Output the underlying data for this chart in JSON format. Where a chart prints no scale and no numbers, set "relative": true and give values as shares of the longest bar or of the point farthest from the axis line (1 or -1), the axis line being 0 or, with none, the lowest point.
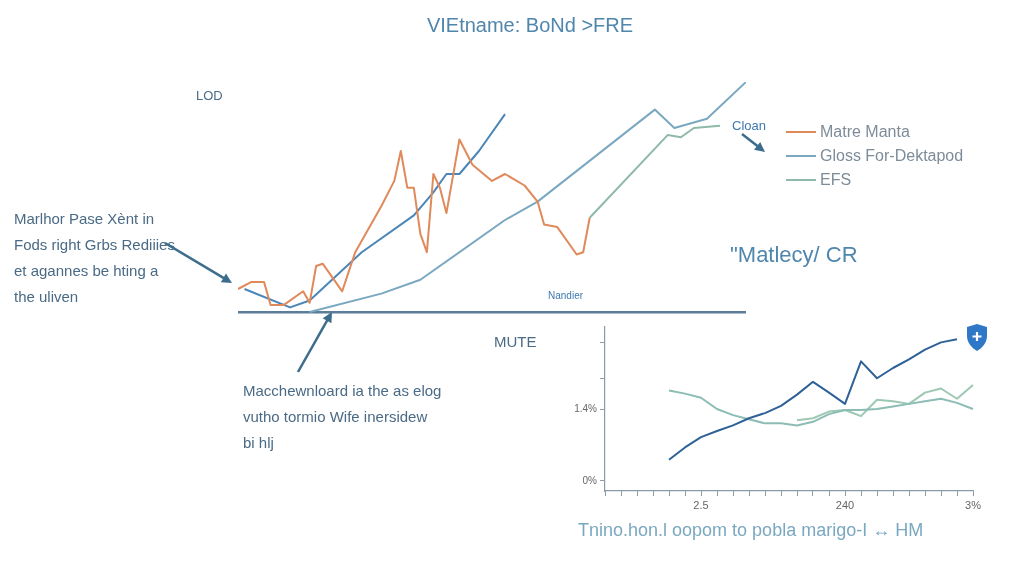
{
  "chart_data": [
    {
      "type": "line",
      "title": "VIEtname: BoNd >FRE",
      "ylabel": "LOD",
      "xlabel": "MUTE",
      "relative": true,
      "marker": "none",
      "legend": "right",
      "annotations": [
        "Marlhor Pase Xènt in Fods right Grbs Rediiies et agannes be hting a the uliven",
        "Macchewnloard ia the as elog vutho tormio Wife inersidew bi hlj",
        "Nandier",
        "Cloan"
      ],
      "categories": [
        null,
        null,
        null,
        null,
        null,
        null,
        null,
        null,
        null,
        null,
        null,
        null,
        null,
        null,
        null,
        null,
        null,
        null,
        null,
        null,
        null,
        null,
        null,
        null,
        null,
        null,
        null,
        null,
        null,
        null,
        null,
        null,
        null,
        null,
        null,
        null,
        null,
        null,
        null,
        null,
        null,
        null,
        null,
        null,
        null,
        null,
        null,
        null,
        null,
        null,
        null,
        null,
        null,
        null,
        null,
        null,
        null,
        null,
        null,
        null,
        null,
        null,
        null,
        null,
        null,
        null,
        null,
        null,
        null,
        null,
        null,
        null,
        null,
        null,
        null,
        null,
        null,
        null,
        null
      ],
      "series": [
        {
          "name": "Matre Manta",
          "color": "#e0895a",
          "values": [
            0.1,
            null,
            0.13,
            null,
            0.13,
            0.03,
            null,
            0.03,
            null,
            null,
            0.09,
            0.04,
            0.2,
            0.21,
            null,
            null,
            0.09,
            null,
            0.26,
            null,
            null,
            null,
            0.46,
            null,
            0.57,
            0.7,
            0.54,
            0.54,
            0.34,
            0.26,
            0.6,
            0.54,
            0.43,
            0.59,
            0.75,
            null,
            0.64,
            null,
            null,
            0.57,
            null,
            0.6,
            null,
            null,
            0.55,
            null,
            0.48,
            0.38,
            null,
            0.37,
            null,
            null,
            0.25,
            0.26,
            0.41,
            null,
            null,
            null,
            null,
            null,
            null,
            null,
            null,
            null,
            null,
            null,
            null,
            null,
            null,
            null,
            null,
            null,
            null,
            null,
            null,
            null,
            null,
            null,
            null
          ]
        },
        {
          "name": "Gloss For-Dektapod",
          "color": "#7aa8c0",
          "values": [
            null,
            null,
            null,
            null,
            null,
            null,
            null,
            null,
            null,
            null,
            null,
            0,
            null,
            null,
            null,
            null,
            null,
            null,
            null,
            null,
            null,
            null,
            0.08,
            null,
            null,
            null,
            null,
            null,
            0.14,
            null,
            null,
            null,
            null,
            null,
            null,
            null,
            null,
            null,
            null,
            null,
            null,
            0.4,
            null,
            null,
            null,
            null,
            0.48,
            null,
            null,
            null,
            null,
            null,
            null,
            null,
            null,
            null,
            null,
            null,
            null,
            null,
            null,
            null,
            null,
            null,
            0.88,
            null,
            null,
            0.8,
            null,
            null,
            null,
            null,
            0.84,
            null,
            null,
            null,
            null,
            null,
            1.0
          ]
        },
        {
          "name": "EFS",
          "color": "#8fb9a8",
          "values": [
            null,
            null,
            null,
            null,
            null,
            null,
            null,
            null,
            null,
            null,
            null,
            null,
            null,
            null,
            null,
            null,
            null,
            null,
            null,
            null,
            null,
            null,
            null,
            null,
            null,
            null,
            null,
            null,
            null,
            null,
            null,
            null,
            null,
            null,
            null,
            null,
            null,
            null,
            null,
            null,
            null,
            null,
            null,
            null,
            null,
            null,
            null,
            null,
            null,
            null,
            null,
            null,
            null,
            null,
            0.41,
            null,
            null,
            null,
            null,
            null,
            null,
            null,
            null,
            null,
            null,
            null,
            0.77,
            null,
            0.76,
            null,
            0.8,
            null,
            null,
            null,
            0.81,
            null,
            null,
            null,
            null
          ]
        },
        {
          "color": "#4a86b8",
          "values": [
            null,
            0.1,
            null,
            null,
            null,
            null,
            null,
            null,
            0.02,
            null,
            null,
            0.05,
            null,
            null,
            null,
            null,
            null,
            null,
            null,
            0.26,
            null,
            null,
            null,
            null,
            null,
            null,
            null,
            0.42,
            null,
            null,
            0.52,
            null,
            0.6,
            null,
            0.6,
            null,
            null,
            0.7,
            null,
            null,
            null,
            0.86,
            null,
            null,
            null,
            null,
            null,
            null,
            null,
            null,
            null,
            null,
            null,
            null,
            null,
            null,
            null,
            null,
            null,
            null,
            null,
            null,
            null,
            null,
            null,
            null,
            null,
            null,
            null,
            null,
            null,
            null,
            null,
            null,
            null,
            null,
            null,
            null,
            null
          ]
        }
      ]
    },
    {
      "type": "line",
      "title": "\"Matlecy/ CR",
      "xlabel": "Tnino.hon.l oopom to pobla marigo-I ↔ HM",
      "marker": "none",
      "ylim": [
        -0.2,
        3.0
      ],
      "yticks": [
        {
          "value": 0,
          "label": "0%"
        },
        {
          "value": 1.4,
          "label": "1.4%"
        },
        {
          "value": 2,
          "label": null
        },
        {
          "value": 2.7,
          "label": null
        }
      ],
      "categories": [
        null,
        null,
        null,
        null,
        null,
        null,
        "2.5",
        null,
        null,
        null,
        null,
        null,
        null,
        null,
        null,
        "240",
        null,
        null,
        null,
        null,
        null,
        null,
        null,
        "3%"
      ],
      "series": [
        {
          "color": "#2e6296",
          "values": [
            null,
            null,
            null,
            null,
            0.41,
            0.65,
            0.85,
            0.97,
            1.08,
            1.22,
            1.32,
            1.46,
            1.68,
            1.93,
            1.72,
            1.5,
            2.33,
            2.0,
            2.2,
            2.37,
            2.56,
            2.7,
            2.76,
            null
          ]
        },
        {
          "color": "#8cbcb4",
          "values": [
            null,
            null,
            null,
            null,
            1.76,
            1.7,
            1.62,
            1.4,
            1.28,
            1.2,
            1.12,
            1.12,
            1.08,
            1.15,
            1.3,
            1.38,
            1.38,
            1.4,
            1.45,
            1.5,
            1.55,
            1.6,
            1.52,
            1.4
          ]
        },
        {
          "color": "#9cc8b4",
          "values": [
            null,
            null,
            null,
            null,
            null,
            null,
            null,
            null,
            null,
            null,
            null,
            null,
            1.18,
            1.22,
            1.35,
            1.38,
            1.26,
            1.58,
            1.55,
            1.5,
            1.72,
            1.8,
            1.6,
            1.87
          ]
        }
      ]
    }
  ]
}
